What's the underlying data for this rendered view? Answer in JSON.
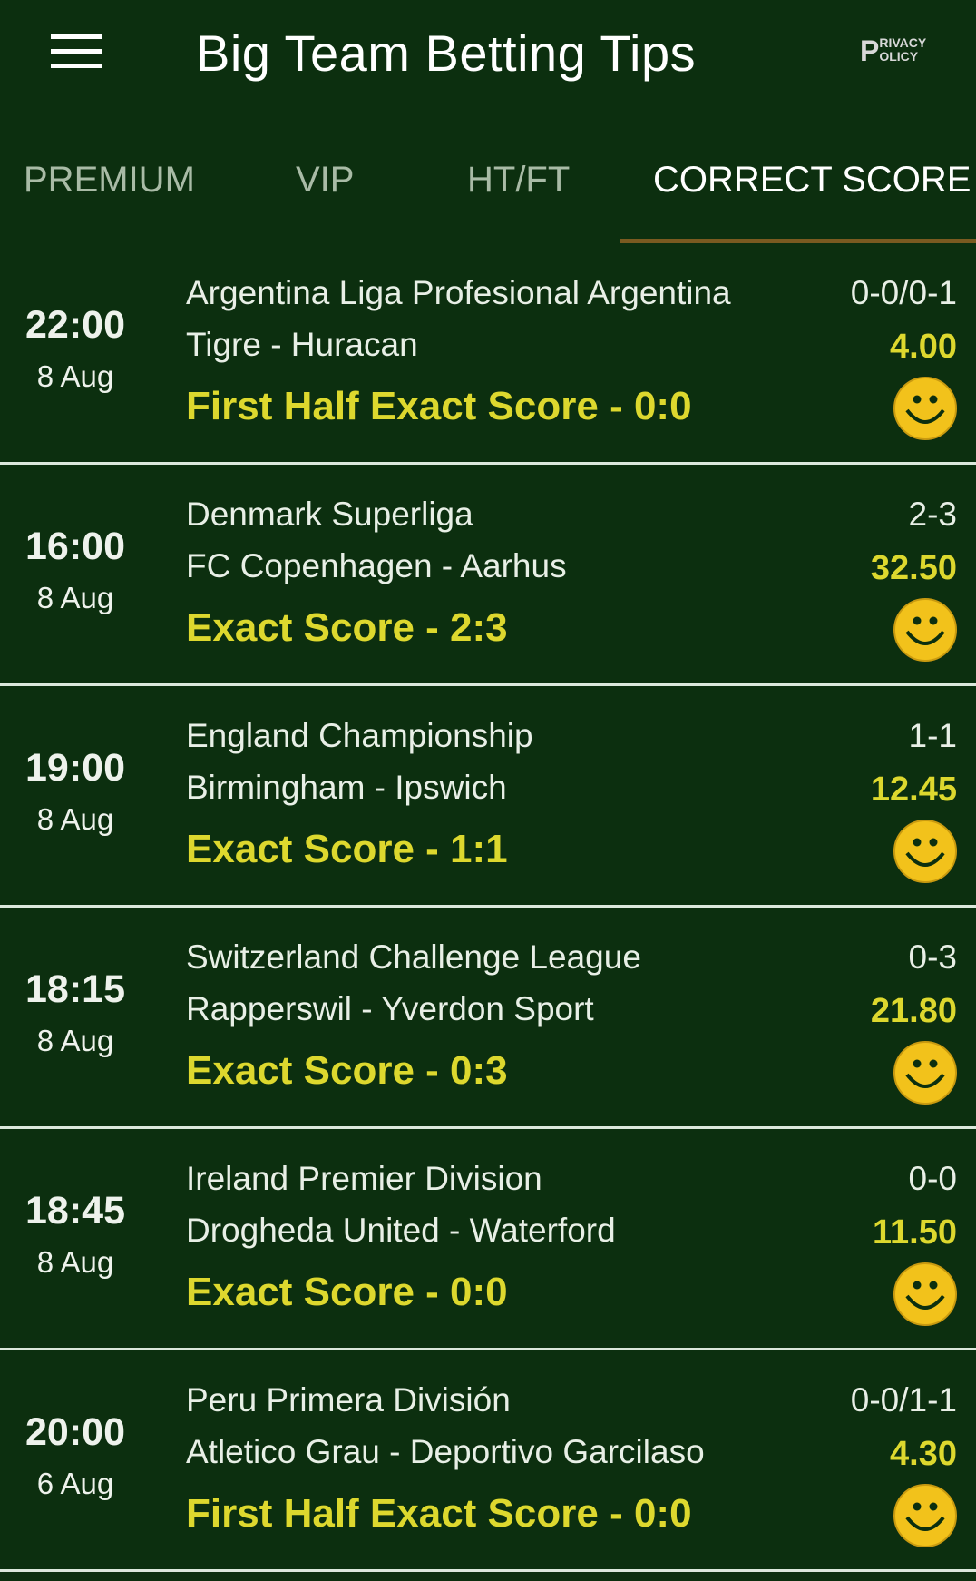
{
  "header": {
    "title": "Big Team Betting Tips",
    "menu_icon": "hamburger-menu-icon",
    "privacy_policy": {
      "first": "P",
      "line1": "RIVACY",
      "line2": "OLICY"
    }
  },
  "tabs": [
    {
      "label": "PREMIUM",
      "active": false
    },
    {
      "label": "VIP",
      "active": false
    },
    {
      "label": "HT/FT",
      "active": false
    },
    {
      "label": "CORRECT SCORE",
      "active": true
    }
  ],
  "colors": {
    "background": "#0c2f0f",
    "accent_yellow": "#ddd82e",
    "tab_indicator": "#7a5a20",
    "smiley": "#f2c21b"
  },
  "tips": [
    {
      "time": "22:00",
      "date": "8 Aug",
      "league": "Argentina Liga Profesional Argentina",
      "match": "Tigre - Huracan",
      "tip": "First Half Exact Score - 0:0",
      "score": "0-0/0-1",
      "odds": "4.00",
      "result_icon": "smiley-icon"
    },
    {
      "time": "16:00",
      "date": "8 Aug",
      "league": "Denmark Superliga",
      "match": "FC Copenhagen - Aarhus",
      "tip": "Exact Score - 2:3",
      "score": "2-3",
      "odds": "32.50",
      "result_icon": "smiley-icon"
    },
    {
      "time": "19:00",
      "date": "8 Aug",
      "league": "England Championship",
      "match": "Birmingham - Ipswich",
      "tip": "Exact Score - 1:1",
      "score": "1-1",
      "odds": "12.45",
      "result_icon": "smiley-icon"
    },
    {
      "time": "18:15",
      "date": "8 Aug",
      "league": "Switzerland Challenge League",
      "match": "Rapperswil - Yverdon Sport",
      "tip": "Exact Score - 0:3",
      "score": "0-3",
      "odds": "21.80",
      "result_icon": "smiley-icon"
    },
    {
      "time": "18:45",
      "date": "8 Aug",
      "league": "Ireland Premier Division",
      "match": "Drogheda United - Waterford",
      "tip": "Exact Score - 0:0",
      "score": "0-0",
      "odds": "11.50",
      "result_icon": "smiley-icon"
    },
    {
      "time": "20:00",
      "date": "6 Aug",
      "league": "Peru Primera División",
      "match": "Atletico Grau - Deportivo Garcilaso",
      "tip": "First Half Exact Score - 0:0",
      "score": "0-0/1-1",
      "odds": "4.30",
      "result_icon": "smiley-icon"
    }
  ]
}
